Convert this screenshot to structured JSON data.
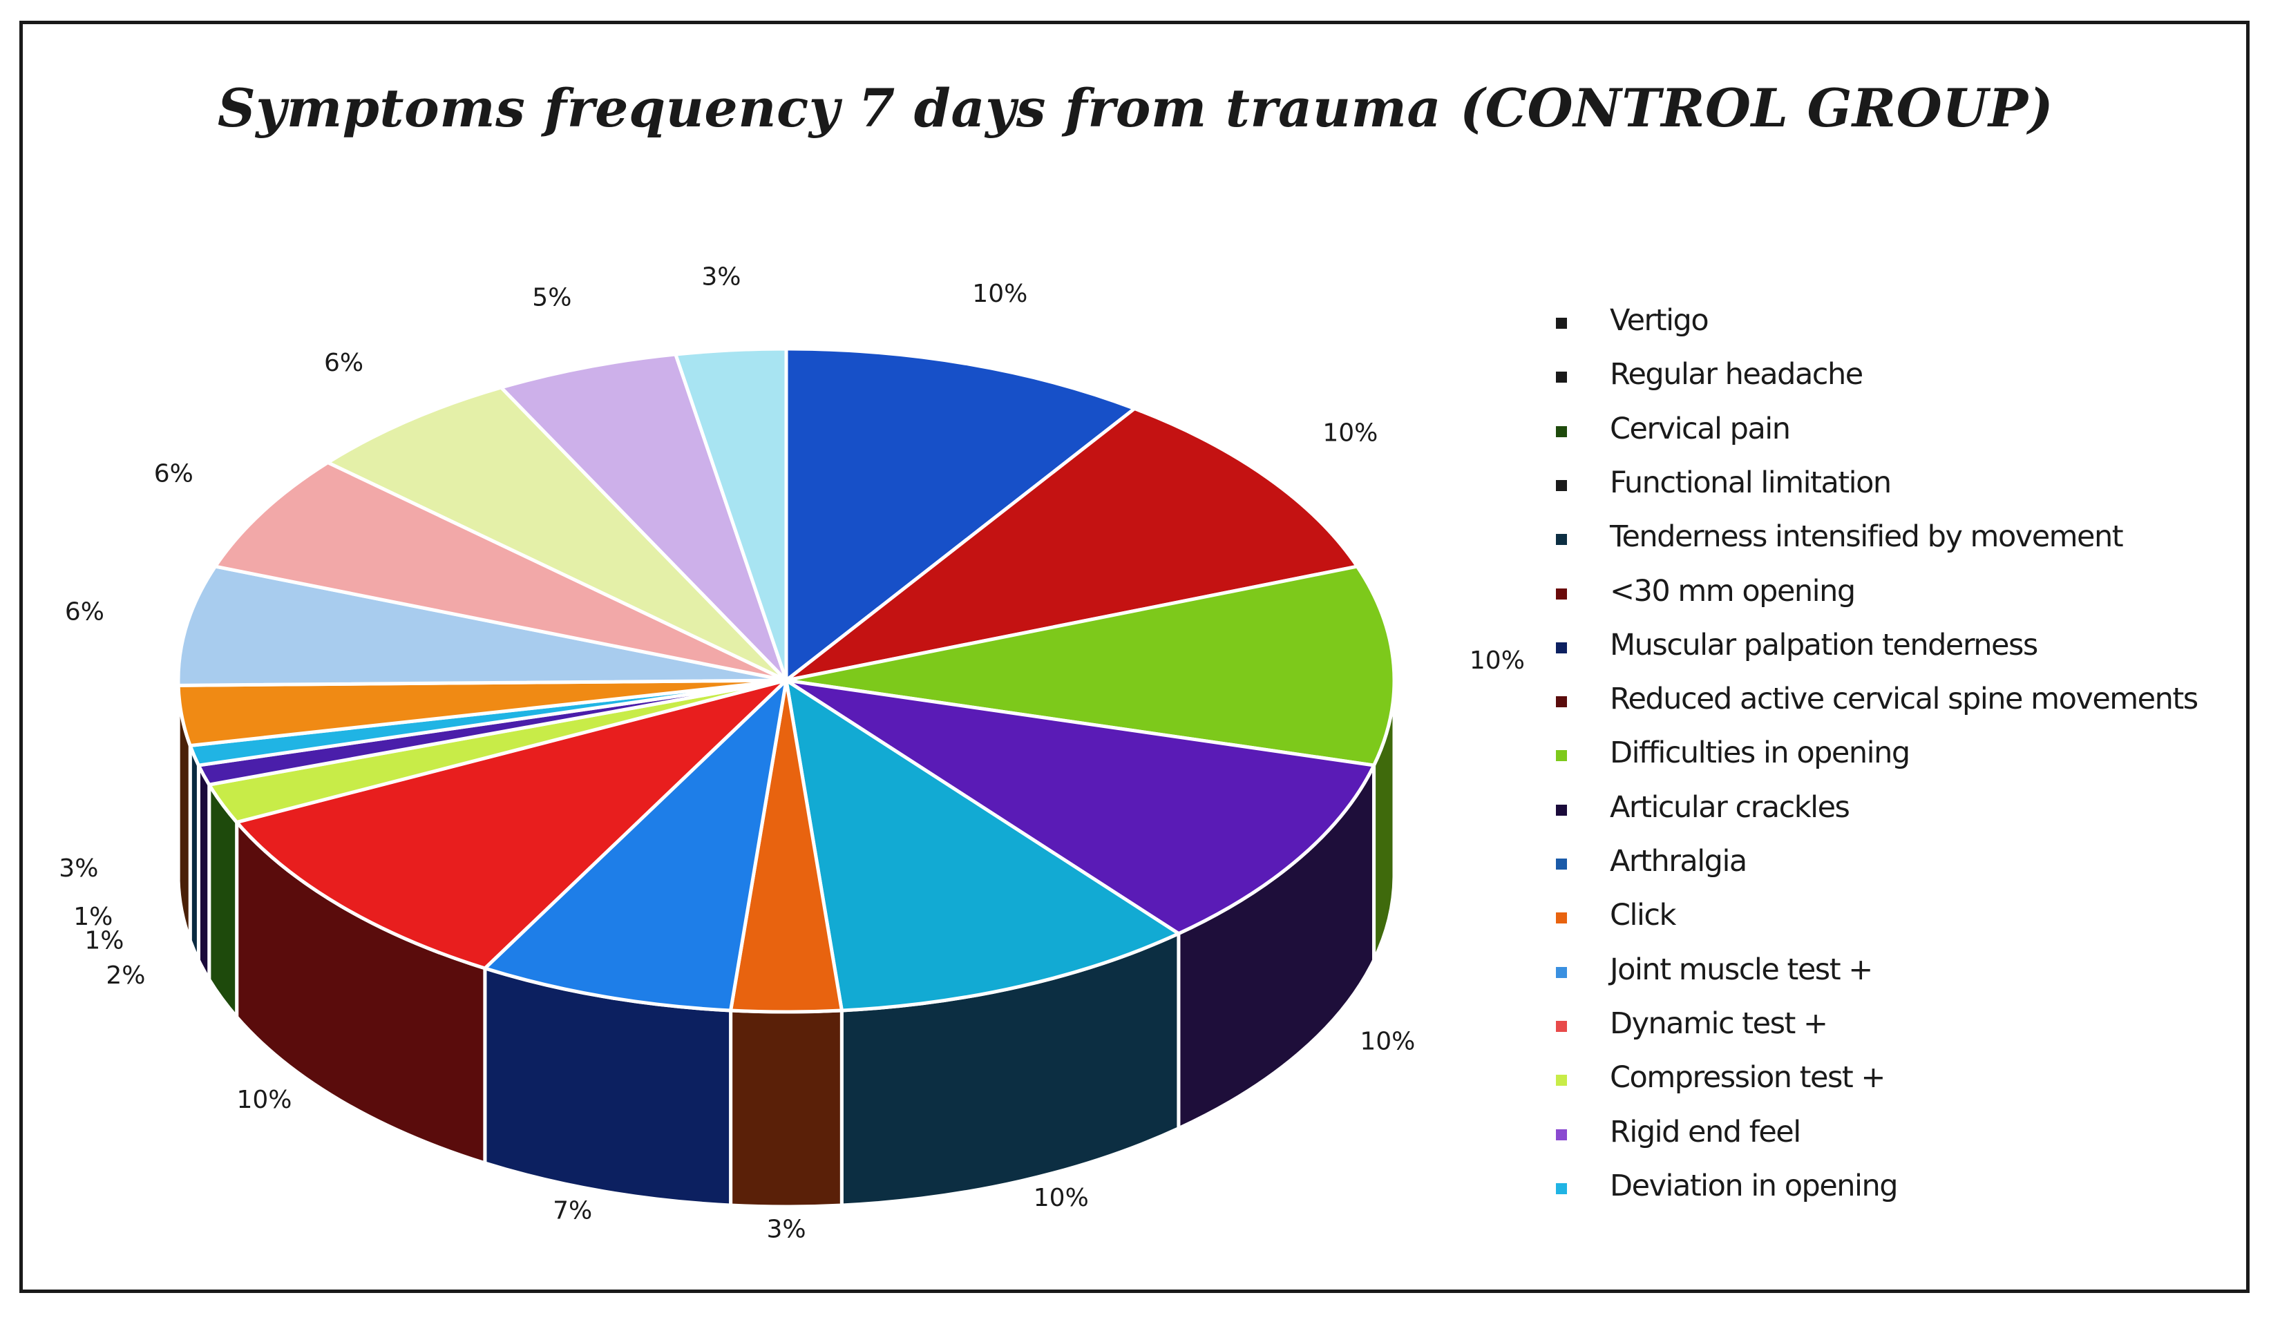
{
  "chart_data": {
    "type": "pie",
    "title": "Symptoms frequency 7 days from trauma (CONTROL GROUP)",
    "legend_position": "right",
    "three_d": true,
    "slices": [
      {
        "label": "Vertigo",
        "value": 10,
        "display": "10%",
        "color": "#1750c8",
        "side": "#0f2f78"
      },
      {
        "label": "Regular headache",
        "value": 10,
        "display": "10%",
        "color": "#c41212",
        "side": "#6a0a0a"
      },
      {
        "label": "Cervical pain",
        "value": 10,
        "display": "10%",
        "color": "#7dc91b",
        "side": "#3f6a0c"
      },
      {
        "label": "Functional limitation",
        "value": 10,
        "display": "10%",
        "color": "#5a1bb6",
        "side": "#1e0e3a"
      },
      {
        "label": "Tenderness intensified by movement",
        "value": 10,
        "display": "10%",
        "color": "#12aad3",
        "side": "#0c2e42"
      },
      {
        "label": "<30 mm opening",
        "value": 3,
        "display": "3%",
        "color": "#e8630f",
        "side": "#5a2008"
      },
      {
        "label": "Muscular palpation tenderness",
        "value": 7,
        "display": "7%",
        "color": "#1e7ee8",
        "side": "#0c2060"
      },
      {
        "label": "Reduced active cervical spine movements",
        "value": 10,
        "display": "10%",
        "color": "#e81e1e",
        "side": "#5a0c0c"
      },
      {
        "label": "Difficulties in opening",
        "value": 2,
        "display": "2%",
        "color": "#c8ec48",
        "side": "#1e4a0c"
      },
      {
        "label": "Articular crackles",
        "value": 1,
        "display": "1%",
        "color": "#4a1eaa",
        "side": "#1a0a3a"
      },
      {
        "label": "Arthralgia",
        "value": 1,
        "display": "1%",
        "color": "#20b4e4",
        "side": "#0a2a40"
      },
      {
        "label": "Click",
        "value": 3,
        "display": "3%",
        "color": "#f08a14",
        "side": "#4a2008"
      },
      {
        "label": "Joint muscle test +",
        "value": 6,
        "display": "6%",
        "color": "#a8ccee",
        "side": "#40608a"
      },
      {
        "label": "Dynamic test +",
        "value": 6,
        "display": "6%",
        "color": "#f2a8a8",
        "side": "#8a4a4a"
      },
      {
        "label": "Compression test +",
        "value": 6,
        "display": "6%",
        "color": "#e4f0a8",
        "side": "#7a8a4a"
      },
      {
        "label": "Rigid end feel",
        "value": 5,
        "display": "5%",
        "color": "#cdb0ea",
        "side": "#6a4a8a"
      },
      {
        "label": "Deviation in opening",
        "value": 3,
        "display": "3%",
        "color": "#a8e4f2",
        "side": "#4a8a9a"
      }
    ],
    "legend": [
      {
        "label": "Vertigo",
        "color": "#1a1a1a"
      },
      {
        "label": "Regular headache",
        "color": "#1a1a1a"
      },
      {
        "label": "Cervical pain",
        "color": "#1e4a0c"
      },
      {
        "label": "Functional limitation",
        "color": "#1a1a1a"
      },
      {
        "label": "Tenderness intensified by movement",
        "color": "#0c2e42"
      },
      {
        "label": "<30 mm opening",
        "color": "#6a0a0a"
      },
      {
        "label": "Muscular palpation tenderness",
        "color": "#0c2060"
      },
      {
        "label": "Reduced active cervical spine movements",
        "color": "#5a0c0c"
      },
      {
        "label": "Difficulties in opening",
        "color": "#7dc91b"
      },
      {
        "label": "Articular crackles",
        "color": "#1a0a3a"
      },
      {
        "label": "Arthralgia",
        "color": "#1a5aa8"
      },
      {
        "label": "Click",
        "color": "#e8630f"
      },
      {
        "label": "Joint muscle test +",
        "color": "#3a90e0"
      },
      {
        "label": "Dynamic test +",
        "color": "#e84a4a"
      },
      {
        "label": "Compression test +",
        "color": "#c8ec48"
      },
      {
        "label": "Rigid end feel",
        "color": "#8a4ad0"
      },
      {
        "label": "Deviation in opening",
        "color": "#20b4e4"
      }
    ]
  }
}
